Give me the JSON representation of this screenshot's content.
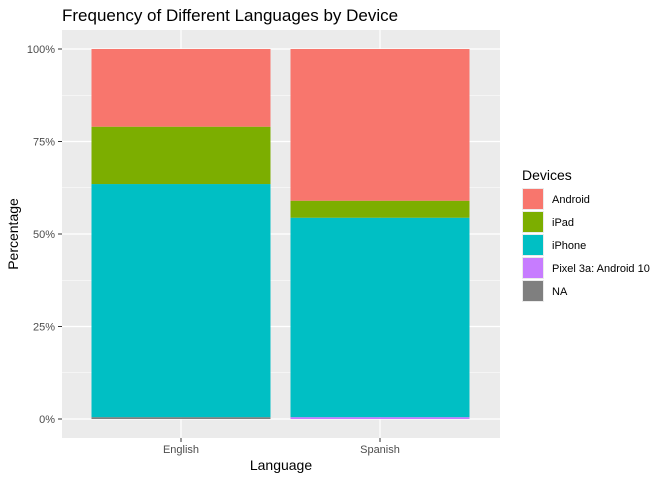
{
  "chart_data": {
    "type": "bar",
    "stacked": true,
    "title": "Frequency of Different Languages by Device",
    "xlabel": "Language",
    "ylabel": "Percentage",
    "categories": [
      "English",
      "Spanish"
    ],
    "ylim": [
      0,
      1
    ],
    "y_ticks": [
      {
        "value": 0,
        "label": "0%"
      },
      {
        "value": 0.25,
        "label": "25%"
      },
      {
        "value": 0.5,
        "label": "50%"
      },
      {
        "value": 0.75,
        "label": "75%"
      },
      {
        "value": 1,
        "label": "100%"
      }
    ],
    "legend": {
      "title": "Devices",
      "position": "right"
    },
    "series": [
      {
        "name": "Android",
        "color": "#F8766D",
        "values": [
          0.21,
          0.41
        ]
      },
      {
        "name": "iPad",
        "color": "#7CAE00",
        "values": [
          0.155,
          0.046
        ]
      },
      {
        "name": "iPhone",
        "color": "#00BFC4",
        "values": [
          0.63,
          0.539
        ]
      },
      {
        "name": "Pixel 3a: Android 10",
        "color": "#C77CFF",
        "values": [
          0.0,
          0.005
        ]
      },
      {
        "name": "NA",
        "color": "#7F7F7F",
        "values": [
          0.005,
          0.0
        ]
      }
    ],
    "grid": true,
    "panel_background": "#EBEBEB"
  }
}
